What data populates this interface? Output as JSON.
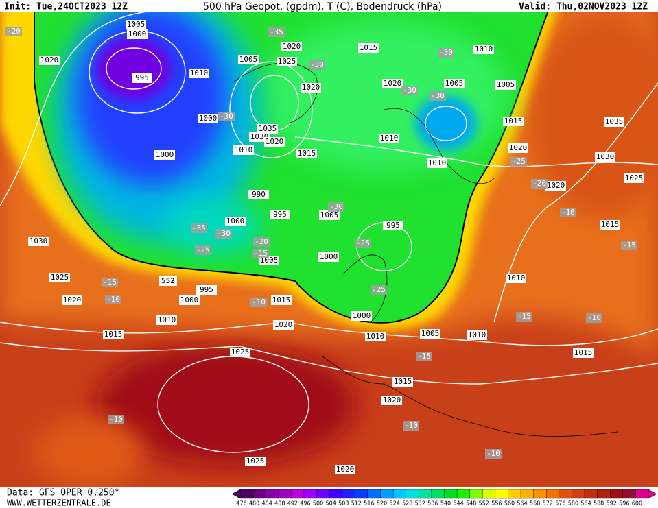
{
  "header": {
    "init": "Init: Tue,24OCT2023 12Z",
    "title": "500 hPa Geopot. (gpdm), T (C), Bodendruck (hPa)",
    "valid": "Valid: Thu,02NOV2023 12Z"
  },
  "footer": {
    "data": "Data: GFS OPER 0.250°",
    "site": "WWW.WETTERZENTRALE.DE"
  },
  "contour_label": 552,
  "isobar_labels": [
    1005,
    1000,
    995,
    1020,
    1010,
    1005,
    1025,
    1020,
    1015,
    1010,
    1005,
    1005,
    1020,
    1020,
    1000,
    1035,
    1030,
    1020,
    1010,
    1015,
    1010,
    1015,
    1000,
    1010,
    1020,
    1035,
    1030,
    1025,
    1020,
    990,
    995,
    1005,
    1000,
    995,
    1015,
    1030,
    1005,
    1000,
    1025,
    1010,
    995,
    1020,
    1000,
    1015,
    1010,
    1020,
    1000,
    1015,
    1010,
    1005,
    1010,
    1025,
    1015,
    1015,
    1020,
    1025,
    1020
  ],
  "temperature_labels": [
    -20,
    -35,
    -30,
    -30,
    -30,
    -30,
    -30,
    -25,
    -20,
    -30,
    -16,
    -35,
    -30,
    -20,
    -25,
    -15,
    -25,
    -15,
    -15,
    -10,
    -10,
    -25,
    -15,
    -10,
    -15,
    -10,
    -10,
    -10
  ],
  "colorbar": {
    "labels": [
      476,
      480,
      484,
      488,
      492,
      496,
      500,
      504,
      508,
      512,
      516,
      520,
      524,
      528,
      532,
      536,
      540,
      544,
      548,
      552,
      556,
      560,
      564,
      568,
      572,
      576,
      580,
      584,
      588,
      592,
      596,
      600
    ],
    "colors": [
      "#4a0060",
      "#6a0080",
      "#8a00a0",
      "#a000c0",
      "#c000e0",
      "#a000ff",
      "#7000ff",
      "#4000ff",
      "#2020ff",
      "#0040ff",
      "#0070ff",
      "#00a0ff",
      "#00c8ff",
      "#00e0e0",
      "#00e0a0",
      "#00e060",
      "#00e020",
      "#20f000",
      "#80ff00",
      "#e0ff00",
      "#ffff00",
      "#ffd000",
      "#ffb000",
      "#ff9000",
      "#f07000",
      "#e05010",
      "#d04010",
      "#c03010",
      "#b02010",
      "#a01010",
      "#901030",
      "#e00090"
    ]
  }
}
